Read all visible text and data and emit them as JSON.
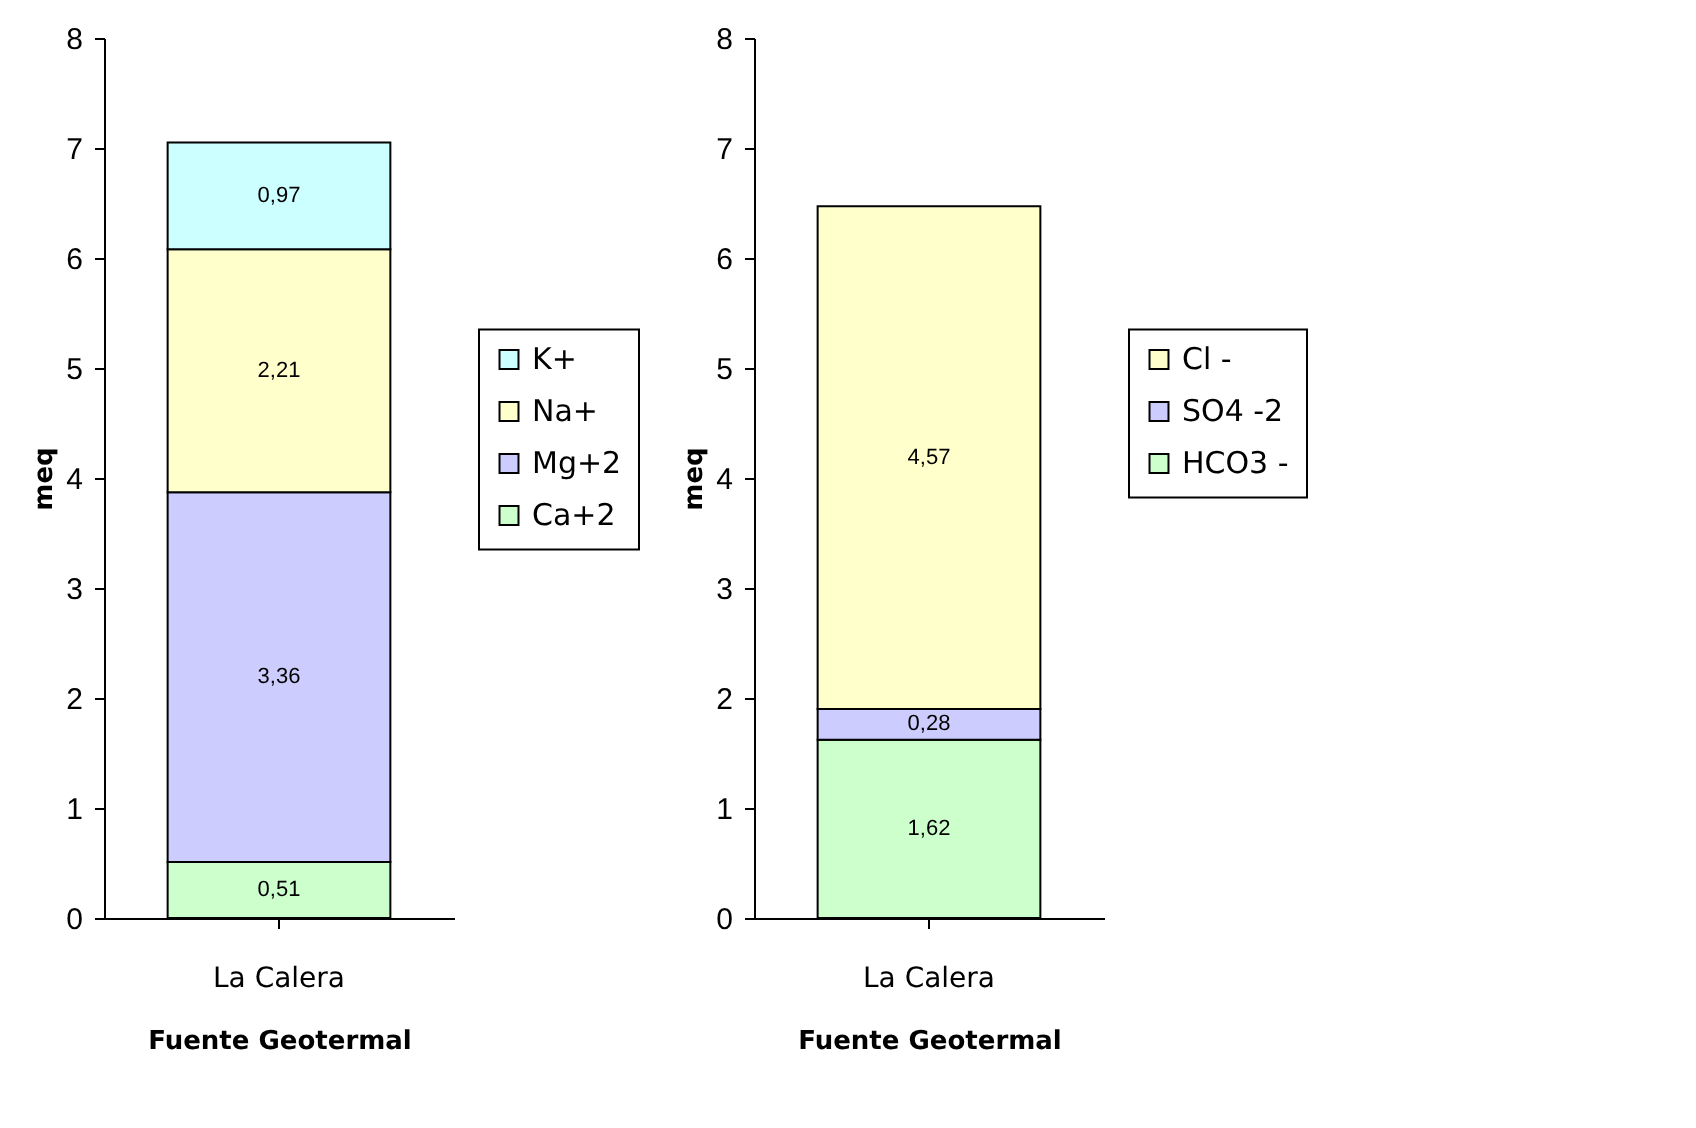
{
  "chart_data": [
    {
      "type": "bar",
      "stacked": true,
      "xlabel": "Fuente Geotermal",
      "ylabel": "meq",
      "categories": [
        "La Calera"
      ],
      "ylim": [
        0,
        8
      ],
      "yticks": [
        0,
        1,
        2,
        3,
        4,
        5,
        6,
        7,
        8
      ],
      "grid": false,
      "legend": "right",
      "series": [
        {
          "name": "Ca+2",
          "color": "#ccffcc",
          "values": [
            0.51
          ],
          "value_labels": [
            "0,51"
          ]
        },
        {
          "name": "Mg+2",
          "color": "#ccccff",
          "values": [
            3.36
          ],
          "value_labels": [
            "3,36"
          ]
        },
        {
          "name": "Na+",
          "color": "#ffffcc",
          "values": [
            2.21
          ],
          "value_labels": [
            "2,21"
          ]
        },
        {
          "name": "K+",
          "color": "#ccffff",
          "values": [
            0.97
          ],
          "value_labels": [
            "0,97"
          ]
        }
      ]
    },
    {
      "type": "bar",
      "stacked": true,
      "xlabel": "Fuente Geotermal",
      "ylabel": "meq",
      "categories": [
        "La Calera"
      ],
      "ylim": [
        0,
        8
      ],
      "yticks": [
        0,
        1,
        2,
        3,
        4,
        5,
        6,
        7,
        8
      ],
      "grid": false,
      "legend": "right",
      "series": [
        {
          "name": "HCO3 -",
          "color": "#ccffcc",
          "values": [
            1.62
          ],
          "value_labels": [
            "1,62"
          ]
        },
        {
          "name": "SO4 -2",
          "color": "#ccccff",
          "values": [
            0.28
          ],
          "value_labels": [
            "0,28"
          ]
        },
        {
          "name": "Cl -",
          "color": "#ffffcc",
          "values": [
            4.57
          ],
          "value_labels": [
            "4,57"
          ]
        }
      ]
    }
  ]
}
